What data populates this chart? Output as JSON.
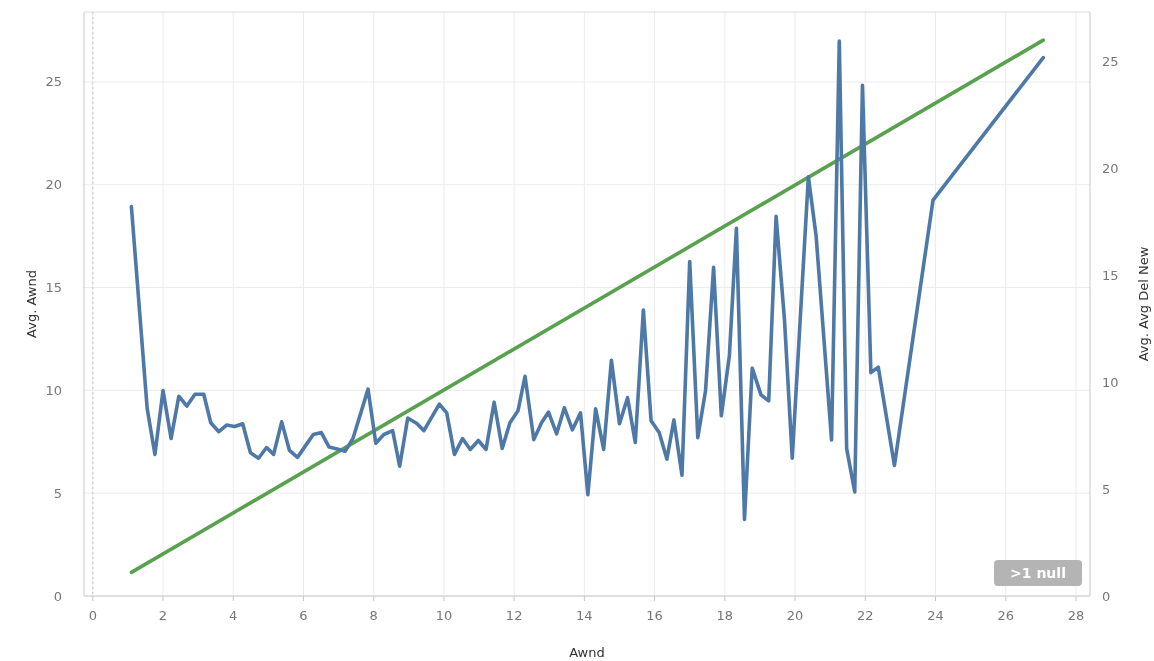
{
  "chart_data": {
    "type": "line",
    "xlabel": "Awnd",
    "ylabel": "Avg. Awnd",
    "y2label": "Avg. Avg Del New",
    "xlim": [
      -0.25,
      28.4
    ],
    "xticks": [
      0,
      2,
      4,
      6,
      8,
      10,
      12,
      14,
      16,
      18,
      20,
      22,
      24,
      26,
      28
    ],
    "ylim": [
      0,
      28.4
    ],
    "yticks": [
      0,
      5,
      10,
      15,
      20,
      25
    ],
    "y2lim": [
      0,
      27.3
    ],
    "y2ticks": [
      0,
      5,
      10,
      15,
      20,
      25
    ],
    "grid": true,
    "line_style": "solid",
    "marker": "none",
    "ref_lines": [
      {
        "axis": "x",
        "value": 0,
        "line_style": "dotted",
        "color": "#c8c8c8"
      }
    ],
    "annotations": [
      ">1 null"
    ],
    "series": [
      {
        "color": "#59a14f",
        "x": [
          1.1,
          27.07
        ],
        "values": [
          1.15,
          27.03
        ]
      },
      {
        "color": "#4e79a7",
        "axis": "y2",
        "x": [
          1.1,
          1.55,
          1.77,
          2.0,
          2.23,
          2.45,
          2.68,
          2.91,
          3.16,
          3.36,
          3.59,
          3.81,
          4.04,
          4.27,
          4.49,
          4.72,
          4.95,
          5.15,
          5.38,
          5.6,
          5.83,
          6.06,
          6.28,
          6.51,
          6.73,
          6.96,
          7.19,
          7.41,
          7.84,
          8.06,
          8.29,
          8.54,
          8.74,
          8.97,
          9.23,
          9.43,
          9.87,
          10.08,
          10.3,
          10.53,
          10.75,
          10.98,
          11.2,
          11.43,
          11.66,
          11.88,
          12.11,
          12.31,
          12.56,
          12.78,
          12.98,
          13.21,
          13.43,
          13.66,
          13.89,
          14.1,
          14.32,
          14.55,
          14.77,
          15.0,
          15.23,
          15.45,
          15.68,
          15.9,
          16.13,
          16.35,
          16.55,
          16.78,
          17.0,
          17.23,
          17.45,
          17.68,
          17.9,
          18.13,
          18.33,
          18.56,
          18.78,
          19.03,
          19.25,
          19.46,
          19.7,
          19.92,
          20.38,
          20.6,
          21.04,
          21.26,
          21.47,
          21.7,
          21.92,
          22.16,
          22.37,
          22.83,
          23.93,
          27.07
        ],
        "values": [
          18.2,
          8.75,
          6.62,
          9.6,
          7.36,
          9.34,
          8.88,
          9.43,
          9.43,
          8.1,
          7.68,
          7.99,
          7.92,
          8.05,
          6.7,
          6.44,
          6.94,
          6.62,
          8.14,
          6.81,
          6.48,
          7.03,
          7.55,
          7.64,
          6.96,
          6.87,
          6.77,
          7.36,
          9.67,
          7.14,
          7.55,
          7.73,
          6.07,
          8.32,
          8.06,
          7.73,
          8.97,
          8.56,
          6.62,
          7.36,
          6.85,
          7.27,
          6.85,
          9.06,
          6.9,
          8.1,
          8.66,
          10.27,
          7.31,
          8.1,
          8.6,
          7.58,
          8.8,
          7.77,
          8.56,
          4.74,
          8.75,
          6.85,
          11.02,
          8.05,
          9.27,
          7.18,
          13.37,
          8.19,
          7.64,
          6.4,
          8.23,
          5.65,
          15.64,
          7.4,
          9.58,
          15.36,
          8.43,
          11.24,
          17.19,
          3.58,
          10.65,
          9.4,
          9.12,
          17.75,
          12.9,
          6.44,
          19.6,
          16.83,
          7.29,
          25.94,
          6.89,
          4.86,
          23.87,
          10.44,
          10.7,
          6.1,
          18.51,
          25.17
        ]
      }
    ]
  }
}
